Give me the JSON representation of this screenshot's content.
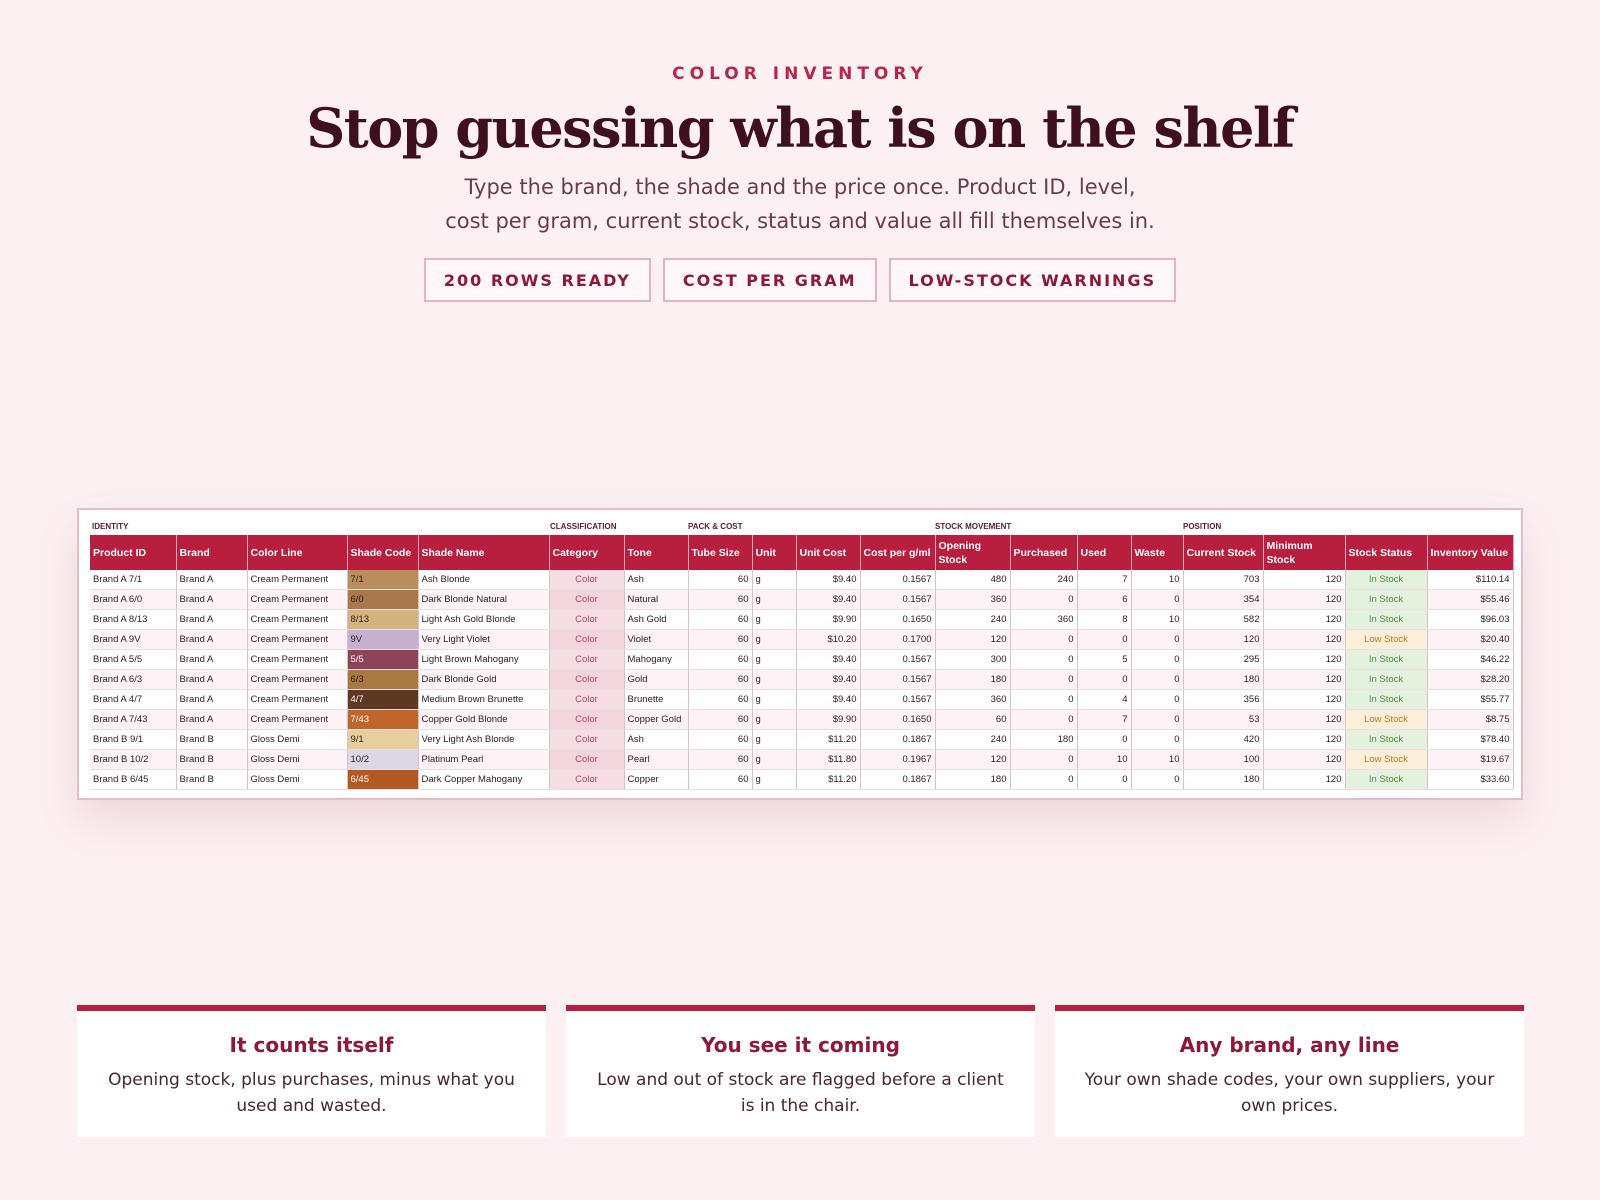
{
  "hero": {
    "eyebrow": "COLOR INVENTORY",
    "title": "Stop guessing what is on the shelf",
    "subtitle_line1": "Type the brand, the shade and the price once. Product ID, level,",
    "subtitle_line2": "cost per gram, current stock, status and value all fill themselves in."
  },
  "pills": [
    "200 ROWS READY",
    "COST PER GRAM",
    "LOW-STOCK WARNINGS"
  ],
  "sheet": {
    "groups": [
      "IDENTITY",
      "CLASSIFICATION",
      "PACK & COST",
      "STOCK MOVEMENT",
      "POSITION"
    ],
    "headers": [
      "Product ID",
      "Brand",
      "Color Line",
      "Shade Code",
      "Shade Name",
      "Category",
      "Tone",
      "Tube Size",
      "Unit",
      "Unit Cost",
      "Cost per g/ml",
      "Opening Stock",
      "Purchased",
      "Used",
      "Waste",
      "Current Stock",
      "Minimum Stock",
      "Stock Status",
      "Inventory Value"
    ],
    "rows": [
      {
        "product_id": "Brand A 7/1",
        "brand": "Brand A",
        "color_line": "Cream Permanent",
        "shade_code": "7/1",
        "swatch": "#b98d5c",
        "shade_name": "Ash Blonde",
        "category": "Color",
        "tone": "Ash",
        "tube_size": "60",
        "unit": "g",
        "unit_cost": "$9.40",
        "cost_per_g": "0.1567",
        "opening": "480",
        "purchased": "240",
        "used": "7",
        "waste": "10",
        "current": "703",
        "minimum": "120",
        "status": "In Stock",
        "value": "$110.14"
      },
      {
        "product_id": "Brand A 6/0",
        "brand": "Brand A",
        "color_line": "Cream Permanent",
        "shade_code": "6/0",
        "swatch": "#a9794a",
        "shade_name": "Dark Blonde Natural",
        "category": "Color",
        "tone": "Natural",
        "tube_size": "60",
        "unit": "g",
        "unit_cost": "$9.40",
        "cost_per_g": "0.1567",
        "opening": "360",
        "purchased": "0",
        "used": "6",
        "waste": "0",
        "current": "354",
        "minimum": "120",
        "status": "In Stock",
        "value": "$55.46"
      },
      {
        "product_id": "Brand A 8/13",
        "brand": "Brand A",
        "color_line": "Cream Permanent",
        "shade_code": "8/13",
        "swatch": "#d5b37e",
        "shade_name": "Light Ash Gold Blonde",
        "category": "Color",
        "tone": "Ash Gold",
        "tube_size": "60",
        "unit": "g",
        "unit_cost": "$9.90",
        "cost_per_g": "0.1650",
        "opening": "240",
        "purchased": "360",
        "used": "8",
        "waste": "10",
        "current": "582",
        "minimum": "120",
        "status": "In Stock",
        "value": "$96.03"
      },
      {
        "product_id": "Brand A 9V",
        "brand": "Brand A",
        "color_line": "Cream Permanent",
        "shade_code": "9V",
        "swatch": "#c5b0d1",
        "shade_name": "Very Light Violet",
        "category": "Color",
        "tone": "Violet",
        "tube_size": "60",
        "unit": "g",
        "unit_cost": "$10.20",
        "cost_per_g": "0.1700",
        "opening": "120",
        "purchased": "0",
        "used": "0",
        "waste": "0",
        "current": "120",
        "minimum": "120",
        "status": "Low Stock",
        "value": "$20.40"
      },
      {
        "product_id": "Brand A 5/5",
        "brand": "Brand A",
        "color_line": "Cream Permanent",
        "shade_code": "5/5",
        "swatch": "#8c4456",
        "shade_name": "Light Brown Mahogany",
        "category": "Color",
        "tone": "Mahogany",
        "tube_size": "60",
        "unit": "g",
        "unit_cost": "$9.40",
        "cost_per_g": "0.1567",
        "opening": "300",
        "purchased": "0",
        "used": "5",
        "waste": "0",
        "current": "295",
        "minimum": "120",
        "status": "In Stock",
        "value": "$46.22"
      },
      {
        "product_id": "Brand A 6/3",
        "brand": "Brand A",
        "color_line": "Cream Permanent",
        "shade_code": "6/3",
        "swatch": "#a87a42",
        "shade_name": "Dark Blonde Gold",
        "category": "Color",
        "tone": "Gold",
        "tube_size": "60",
        "unit": "g",
        "unit_cost": "$9.40",
        "cost_per_g": "0.1567",
        "opening": "180",
        "purchased": "0",
        "used": "0",
        "waste": "0",
        "current": "180",
        "minimum": "120",
        "status": "In Stock",
        "value": "$28.20"
      },
      {
        "product_id": "Brand A 4/7",
        "brand": "Brand A",
        "color_line": "Cream Permanent",
        "shade_code": "4/7",
        "swatch": "#5e3823",
        "shade_name": "Medium Brown Brunette",
        "category": "Color",
        "tone": "Brunette",
        "tube_size": "60",
        "unit": "g",
        "unit_cost": "$9.40",
        "cost_per_g": "0.1567",
        "opening": "360",
        "purchased": "0",
        "used": "4",
        "waste": "0",
        "current": "356",
        "minimum": "120",
        "status": "In Stock",
        "value": "$55.77"
      },
      {
        "product_id": "Brand A 7/43",
        "brand": "Brand A",
        "color_line": "Cream Permanent",
        "shade_code": "7/43",
        "swatch": "#c2652a",
        "shade_name": "Copper Gold Blonde",
        "category": "Color",
        "tone": "Copper Gold",
        "tube_size": "60",
        "unit": "g",
        "unit_cost": "$9.90",
        "cost_per_g": "0.1650",
        "opening": "60",
        "purchased": "0",
        "used": "7",
        "waste": "0",
        "current": "53",
        "minimum": "120",
        "status": "Low Stock",
        "value": "$8.75"
      },
      {
        "product_id": "Brand B 9/1",
        "brand": "Brand B",
        "color_line": "Gloss Demi",
        "shade_code": "9/1",
        "swatch": "#e6ce9f",
        "shade_name": "Very Light Ash Blonde",
        "category": "Color",
        "tone": "Ash",
        "tube_size": "60",
        "unit": "g",
        "unit_cost": "$11.20",
        "cost_per_g": "0.1867",
        "opening": "240",
        "purchased": "180",
        "used": "0",
        "waste": "0",
        "current": "420",
        "minimum": "120",
        "status": "In Stock",
        "value": "$78.40"
      },
      {
        "product_id": "Brand B 10/2",
        "brand": "Brand B",
        "color_line": "Gloss Demi",
        "shade_code": "10/2",
        "swatch": "#dcd6e5",
        "shade_name": "Platinum Pearl",
        "category": "Color",
        "tone": "Pearl",
        "tube_size": "60",
        "unit": "g",
        "unit_cost": "$11.80",
        "cost_per_g": "0.1967",
        "opening": "120",
        "purchased": "0",
        "used": "10",
        "waste": "10",
        "current": "100",
        "minimum": "120",
        "status": "Low Stock",
        "value": "$19.67"
      },
      {
        "product_id": "Brand B 6/45",
        "brand": "Brand B",
        "color_line": "Gloss Demi",
        "shade_code": "6/45",
        "swatch": "#b35a24",
        "shade_name": "Dark Copper Mahogany",
        "category": "Color",
        "tone": "Copper",
        "tube_size": "60",
        "unit": "g",
        "unit_cost": "$11.20",
        "cost_per_g": "0.1867",
        "opening": "180",
        "purchased": "0",
        "used": "0",
        "waste": "0",
        "current": "180",
        "minimum": "120",
        "status": "In Stock",
        "value": "$33.60"
      }
    ]
  },
  "features": [
    {
      "title": "It counts itself",
      "body": "Opening stock, plus purchases, minus what you used and wasted."
    },
    {
      "title": "You see it coming",
      "body": "Low and out of stock are flagged before a client is in the chair."
    },
    {
      "title": "Any brand, any line",
      "body": "Your own shade codes, your own suppliers, your own prices."
    }
  ],
  "colors": {
    "accent": "#b81f3e",
    "background": "#fdf0f3",
    "in_stock": "#e4f1df",
    "low_stock": "#fcefd9"
  }
}
